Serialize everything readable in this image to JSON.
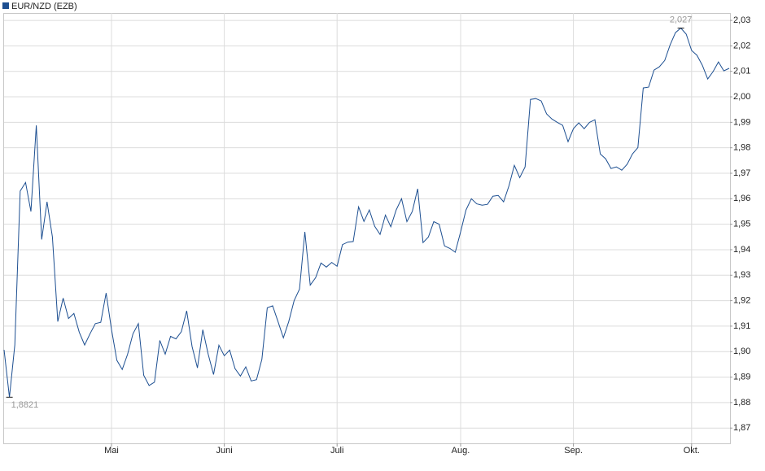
{
  "chart_data": {
    "type": "line",
    "series": [
      {
        "name": "EUR/NZD (EZB)",
        "color": "#1d4f91",
        "values": [
          1.9007,
          1.8821,
          1.9026,
          1.963,
          1.9664,
          1.955,
          1.9888,
          1.944,
          1.9588,
          1.945,
          1.9118,
          1.921,
          1.913,
          1.915,
          1.9076,
          1.9026,
          1.907,
          1.911,
          1.9115,
          1.923,
          1.9087,
          1.8966,
          1.893,
          1.899,
          1.907,
          1.911,
          1.8907,
          1.8867,
          1.888,
          1.9044,
          1.899,
          1.906,
          1.905,
          1.9078,
          1.916,
          1.902,
          1.8936,
          1.9086,
          1.899,
          1.891,
          1.9025,
          1.8984,
          1.9006,
          1.8933,
          1.8904,
          1.894,
          1.8885,
          1.889,
          1.897,
          1.9172,
          1.918,
          1.9118,
          1.9054,
          1.9118,
          1.92,
          1.9245,
          1.947,
          1.9261,
          1.929,
          1.9348,
          1.9332,
          1.935,
          1.9335,
          1.942,
          1.943,
          1.9432,
          1.9568,
          1.9511,
          1.9556,
          1.9492,
          1.946,
          1.9536,
          1.949,
          1.9556,
          1.96,
          1.951,
          1.955,
          1.9639,
          1.9428,
          1.945,
          1.951,
          1.95,
          1.9415,
          1.9405,
          1.939,
          1.947,
          1.9556,
          1.96,
          1.958,
          1.9575,
          1.9578,
          1.961,
          1.9613,
          1.9588,
          1.9651,
          1.9731,
          1.9683,
          1.9725,
          1.999,
          1.9993,
          1.9984,
          1.9933,
          1.9913,
          1.99,
          1.9888,
          1.9824,
          1.9875,
          1.9898,
          1.9875,
          1.99,
          1.991,
          1.9776,
          1.9757,
          1.9719,
          1.9725,
          1.9712,
          1.9735,
          1.9776,
          1.9801,
          2.0035,
          2.0038,
          2.0105,
          2.0118,
          2.0143,
          2.0204,
          2.0252,
          2.027,
          2.0246,
          2.0182,
          2.0163,
          2.0124,
          2.007,
          2.0099,
          2.0137,
          2.0102,
          2.0112
        ]
      }
    ],
    "xlim": [
      0,
      135
    ],
    "xticks": [
      {
        "value": 20,
        "label": "Mai"
      },
      {
        "value": 41,
        "label": "Juni"
      },
      {
        "value": 62,
        "label": "Juli"
      },
      {
        "value": 85,
        "label": "Aug."
      },
      {
        "value": 106,
        "label": "Sep."
      },
      {
        "value": 128,
        "label": "Okt."
      }
    ],
    "ylim": [
      1.864,
      2.0329
    ],
    "yticks": [
      {
        "value": 1.87,
        "label": "1,87"
      },
      {
        "value": 1.88,
        "label": "1,88"
      },
      {
        "value": 1.89,
        "label": "1,89"
      },
      {
        "value": 1.9,
        "label": "1,90"
      },
      {
        "value": 1.91,
        "label": "1,91"
      },
      {
        "value": 1.92,
        "label": "1,92"
      },
      {
        "value": 1.93,
        "label": "1,93"
      },
      {
        "value": 1.94,
        "label": "1,94"
      },
      {
        "value": 1.95,
        "label": "1,95"
      },
      {
        "value": 1.96,
        "label": "1,96"
      },
      {
        "value": 1.97,
        "label": "1,97"
      },
      {
        "value": 1.98,
        "label": "1,98"
      },
      {
        "value": 1.99,
        "label": "1,99"
      },
      {
        "value": 2.0,
        "label": "2,00"
      },
      {
        "value": 2.01,
        "label": "2,01"
      },
      {
        "value": 2.02,
        "label": "2,02"
      },
      {
        "value": 2.03,
        "label": "2,03"
      }
    ],
    "annotations": [
      {
        "label": "2,027",
        "value": 2.027
      },
      {
        "label": "1,8821",
        "value": 1.8821
      }
    ],
    "grid": true,
    "legend": "top-left"
  }
}
